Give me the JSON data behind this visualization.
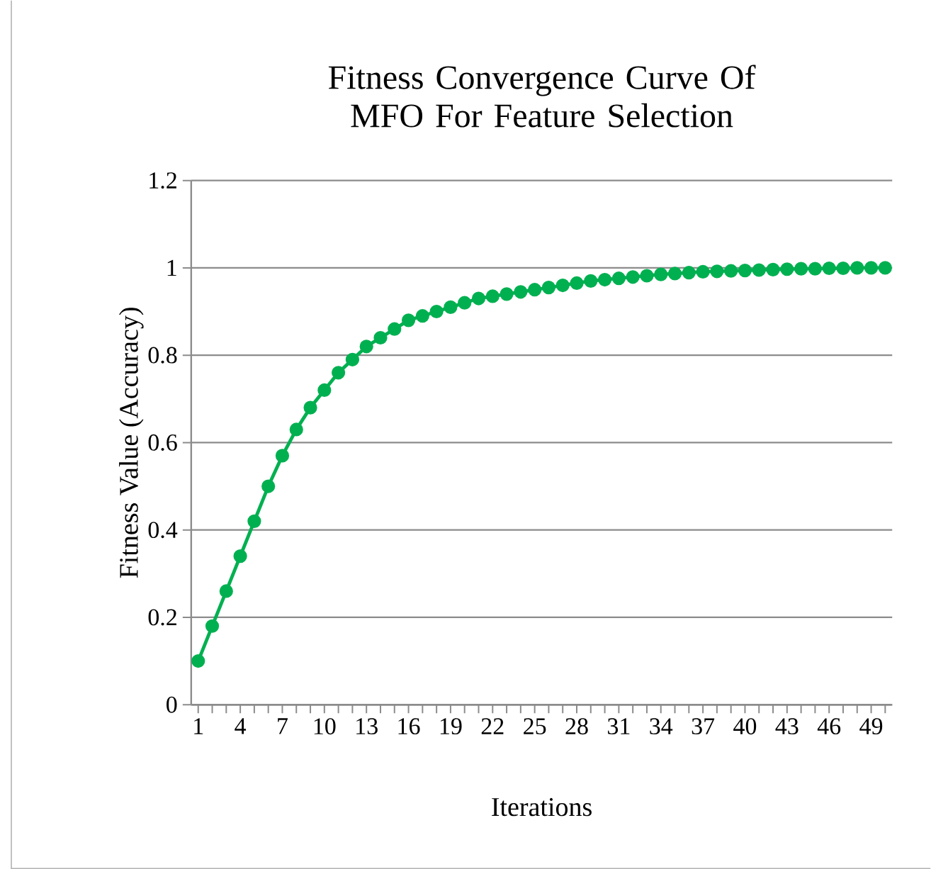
{
  "chart_data": {
    "type": "line",
    "title": "Fitness Convergence Curve Of MFO For Feature Selection",
    "xlabel": "Iterations",
    "ylabel": "Fitness Value (Accuracy)",
    "categories": [
      "1",
      null,
      null,
      "4",
      null,
      null,
      "7",
      null,
      null,
      "10",
      null,
      null,
      "13",
      null,
      null,
      "16",
      null,
      null,
      "19",
      null,
      null,
      "22",
      null,
      null,
      "25",
      null,
      null,
      "28",
      null,
      null,
      "31",
      null,
      null,
      "34",
      null,
      null,
      "37",
      null,
      null,
      "40",
      null,
      null,
      "43",
      null,
      null,
      "46",
      null,
      null,
      "49",
      null
    ],
    "series": [
      {
        "color": "#00b050",
        "values": [
          0.1,
          0.18,
          0.26,
          0.34,
          0.42,
          0.5,
          0.57,
          0.63,
          0.68,
          0.72,
          0.76,
          0.79,
          0.82,
          0.84,
          0.86,
          0.88,
          0.89,
          0.9,
          0.91,
          0.92,
          0.93,
          0.935,
          0.94,
          0.945,
          0.95,
          0.955,
          0.96,
          0.965,
          0.97,
          0.973,
          0.976,
          0.979,
          0.982,
          0.985,
          0.987,
          0.989,
          0.991,
          0.992,
          0.993,
          0.994,
          0.995,
          0.996,
          0.997,
          0.998,
          0.998,
          0.999,
          0.999,
          1.0,
          1.0,
          1.0
        ]
      }
    ],
    "ylim": [
      0,
      1.2
    ],
    "yticks": [
      0,
      0.2,
      0.4,
      0.6,
      0.8,
      1,
      1.2
    ],
    "grid": "y",
    "marker": "circle",
    "line_style": "solid"
  }
}
